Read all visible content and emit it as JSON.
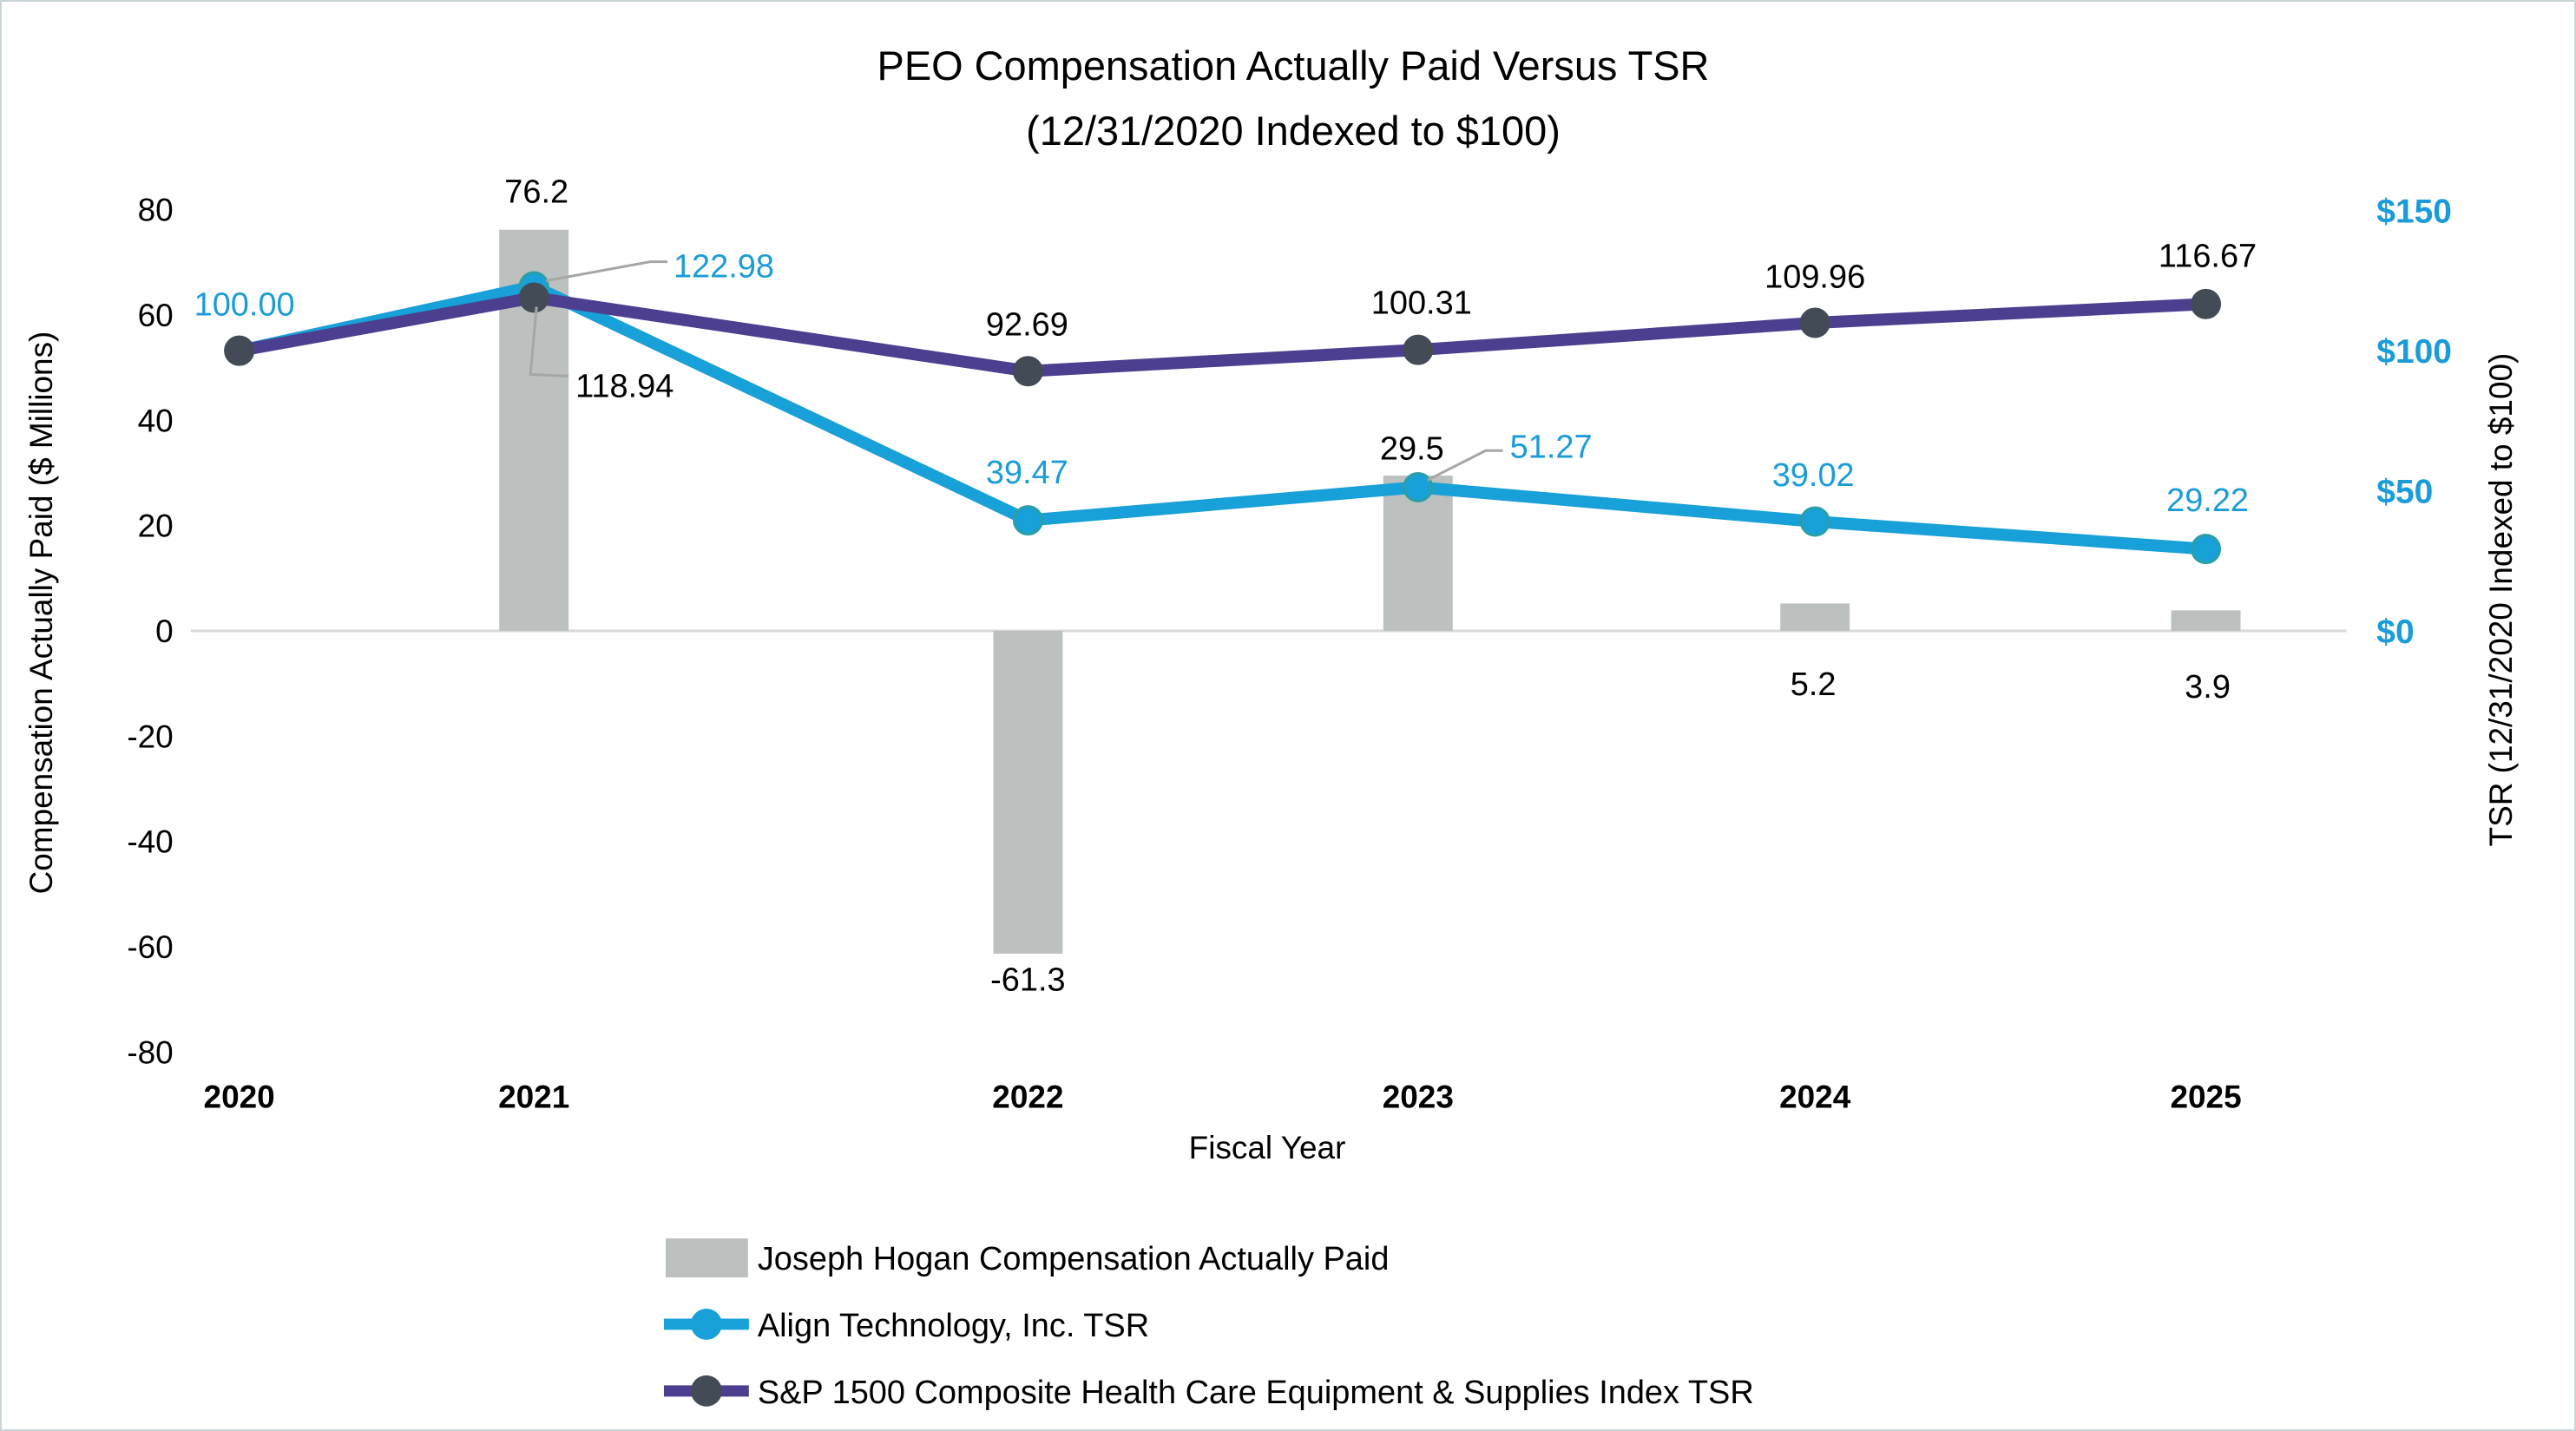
{
  "title": {
    "line1": "PEO Compensation Actually Paid Versus TSR",
    "line2": "(12/31/2020 Indexed to $100)"
  },
  "axes": {
    "x": {
      "title": "Fiscal Year",
      "ticks": [
        "2020",
        "2021",
        "2022",
        "2023",
        "2024",
        "2025"
      ]
    },
    "y_left": {
      "title": "Compensation Actually Paid ($ Millions)",
      "ticks": [
        "80",
        "60",
        "40",
        "20",
        "0",
        "-20",
        "-40",
        "-60",
        "-80"
      ],
      "tick_values": [
        80,
        60,
        40,
        20,
        0,
        -20,
        -40,
        -60,
        -80
      ]
    },
    "y_right": {
      "title": "TSR (12/31/2020 Indexed to $100)",
      "ticks": [
        "$150",
        "$100",
        "$50",
        "$0"
      ],
      "tick_values": [
        150,
        100,
        50,
        0
      ]
    }
  },
  "legend": {
    "items": [
      {
        "label": "Joseph Hogan Compensation Actually Paid",
        "type": "bar",
        "color": "#bcc0bf"
      },
      {
        "label": "Align Technology, Inc. TSR",
        "type": "line",
        "color": "#18a0d8",
        "marker_color": "#18a0d8"
      },
      {
        "label": "S&P 1500 Composite Health Care Equipment & Supplies Index TSR",
        "type": "line",
        "color": "#4c3f8f",
        "marker_color": "#424b56"
      }
    ]
  },
  "chart_data": {
    "type": "combo-bar-line",
    "categories": [
      "2020",
      "2021",
      "2022",
      "2023",
      "2024",
      "2025"
    ],
    "x_axis_label": "Fiscal Year",
    "left_axis_label": "Compensation Actually Paid ($ Millions)",
    "left_ylim": [
      -80,
      80
    ],
    "right_axis_label": "TSR (12/31/2020 Indexed to $100)",
    "right_ylim_shown": [
      0,
      150
    ],
    "grid": "zero-line-only",
    "legend_position": "bottom-left",
    "series": [
      {
        "name": "Joseph Hogan Compensation Actually Paid",
        "type": "bar",
        "axis": "left",
        "values": [
          null,
          76.2,
          -61.3,
          29.5,
          5.2,
          3.9
        ],
        "labels": [
          "",
          "76.2",
          "-61.3",
          "29.5",
          "5.2",
          "3.9"
        ],
        "color": "#bcc0bf",
        "label_color": "#000000"
      },
      {
        "name": "Align Technology, Inc. TSR",
        "type": "line",
        "axis": "right",
        "values": [
          100.0,
          122.98,
          39.47,
          51.27,
          39.02,
          29.22
        ],
        "labels": [
          "100.00",
          "122.98",
          "39.47",
          "51.27",
          "39.02",
          "29.22"
        ],
        "color": "#18a0d8",
        "marker_color": "#18a0d8",
        "marker_edge": "#2a9fa6",
        "label_color": "#1b9cd8"
      },
      {
        "name": "S&P 1500 Composite Health Care Equipment & Supplies Index TSR",
        "type": "line",
        "axis": "right",
        "values": [
          100.0,
          118.94,
          92.69,
          100.31,
          109.96,
          116.67
        ],
        "labels": [
          "",
          "118.94",
          "92.69",
          "100.31",
          "109.96",
          "116.67"
        ],
        "color": "#4c3f8f",
        "marker_color": "#424b56",
        "marker_edge": "#424b56",
        "label_color": "#000000"
      }
    ]
  },
  "colors": {
    "bar": "#bcc0bf",
    "align_line": "#18a0d8",
    "align_label": "#1b9cd8",
    "sp_line": "#4c3f8f",
    "dark_marker": "#424b56",
    "zero_line": "#d9d9d9",
    "leader_line": "#a6a6a6",
    "right_tick": "#1b9cd8",
    "text": "#000000",
    "frame_border": "#c9d4d9"
  }
}
